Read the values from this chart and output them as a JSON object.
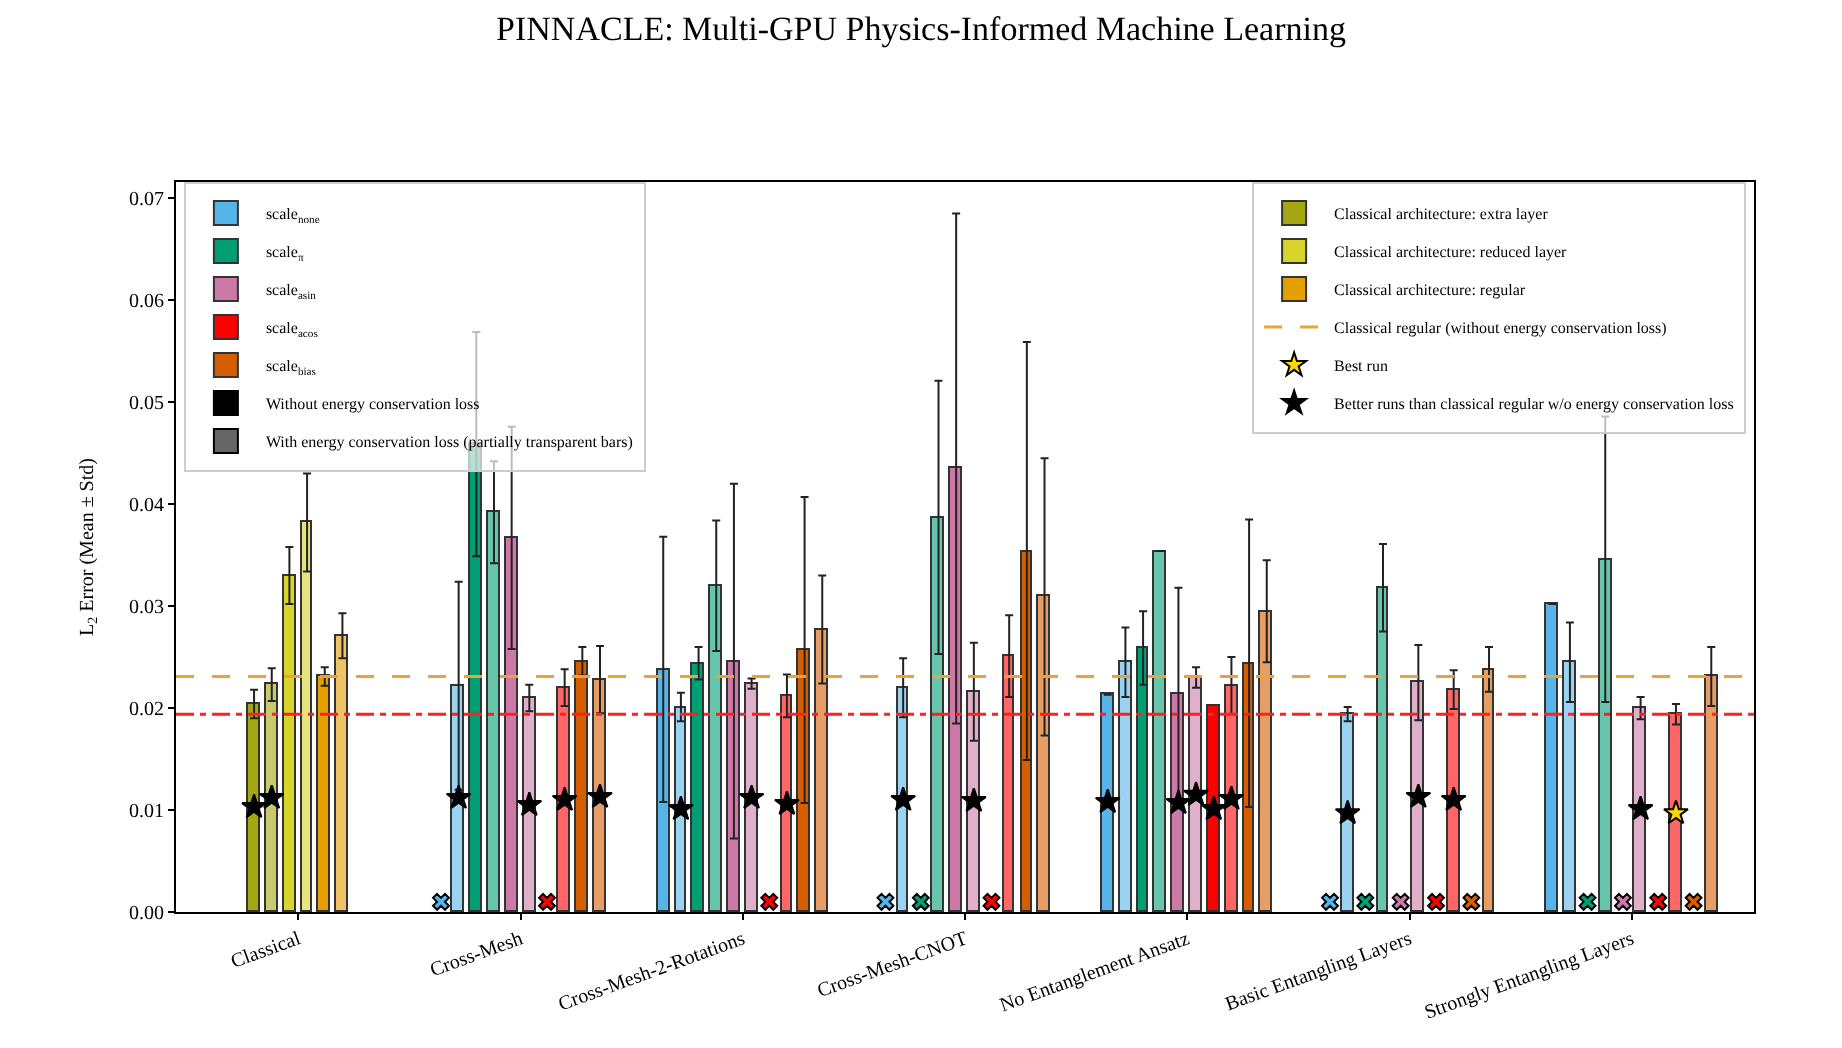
{
  "chart_data": {
    "type": "bar",
    "title": "PINNACLE: Multi-GPU Physics-Informed Machine Learning",
    "ylabel": "L$_{2}$ Error (Mean ± Std)",
    "categories": [
      "Classical",
      "Cross-Mesh",
      "Cross-Mesh-2-Rotations",
      "Cross-Mesh-CNOT",
      "No Entanglement Ansatz",
      "Basic Entangling Layers",
      "Strongly Entangling Layers"
    ],
    "ylim": [
      0,
      0.0716
    ],
    "yticks": [
      {
        "value": 0,
        "label": "0.00"
      },
      {
        "value": 0.01,
        "label": "0.01"
      },
      {
        "value": 0.02,
        "label": "0.02"
      },
      {
        "value": 0.03,
        "label": "0.03"
      },
      {
        "value": 0.04,
        "label": "0.04"
      },
      {
        "value": 0.05,
        "label": "0.05"
      },
      {
        "value": 0.06,
        "label": "0.06"
      },
      {
        "value": 0.07,
        "label": "0.07"
      }
    ],
    "legend": "top left",
    "series": [
      {
        "name": "Classical architecture: extra layer",
        "color": "#a3a812",
        "values": [
          0.0204,
          null,
          null,
          null,
          null,
          null,
          null
        ],
        "errors": [
          0.0014,
          null,
          null,
          null,
          null,
          null,
          null
        ]
      },
      {
        "type": "scatter",
        "marker": "star",
        "name": "Better runs than classical regular w/o energy conservation loss",
        "color": "#000000",
        "values": [
          0.0103,
          null,
          null,
          null,
          null,
          null,
          null
        ]
      },
      {
        "color": "#c8ca6e",
        "values": [
          0.0223,
          null,
          null,
          null,
          null,
          null,
          null
        ],
        "errors": [
          0.0016,
          null,
          null,
          null,
          null,
          null,
          null
        ]
      },
      {
        "type": "scatter",
        "marker": "star",
        "color": "#000000",
        "values": [
          0.0112,
          null,
          null,
          null,
          null,
          null,
          null
        ]
      },
      {
        "name": "Classical architecture: reduced layer",
        "color": "#d8d42c",
        "values": [
          0.033,
          null,
          null,
          null,
          null,
          null,
          null
        ],
        "errors": [
          0.0028,
          null,
          null,
          null,
          null,
          null,
          null
        ]
      },
      {
        "color": "#e6e27f",
        "values": [
          0.0382,
          null,
          null,
          null,
          null,
          null,
          null
        ],
        "errors": [
          0.0048,
          null,
          null,
          null,
          null,
          null,
          null
        ]
      },
      {
        "name": "Classical architecture: regular",
        "color": "#e69f00",
        "values": [
          0.0231,
          null,
          null,
          null,
          null,
          null,
          null
        ],
        "errors": [
          0.0009,
          null,
          null,
          null,
          null,
          null,
          null
        ]
      },
      {
        "color": "#f0c466",
        "values": [
          0.0271,
          null,
          null,
          null,
          null,
          null,
          null
        ],
        "errors": [
          0.0022,
          null,
          null,
          null,
          null,
          null,
          null
        ]
      },
      {
        "name": "scale$_{none}$",
        "color": "#56b4e9",
        "values": [
          null,
          null,
          0.0238,
          null,
          0.0213,
          null,
          0.0302
        ],
        "errors": [
          null,
          null,
          0.013,
          null,
          null,
          null,
          null
        ]
      },
      {
        "type": "scatter",
        "marker": "cross",
        "color": "#56b4e9",
        "values": [
          null,
          0.001,
          null,
          0.001,
          null,
          0.001,
          null
        ]
      },
      {
        "type": "scatter",
        "marker": "star",
        "color": "#000000",
        "values": [
          null,
          null,
          null,
          null,
          0.0108,
          null,
          null
        ]
      },
      {
        "color": "#9ad2f2",
        "values": [
          null,
          0.0222,
          0.0201,
          0.022,
          0.0245,
          0.0194,
          0.0245
        ],
        "errors": [
          null,
          0.0102,
          0.0014,
          0.0029,
          0.0034,
          0.0007,
          0.0039
        ]
      },
      {
        "type": "scatter",
        "marker": "star",
        "color": "#000000",
        "values": [
          null,
          0.0112,
          0.0101,
          0.011,
          null,
          0.0097,
          null
        ]
      },
      {
        "name": "scale$_{π}$",
        "color": "#009e73",
        "values": [
          null,
          0.0459,
          0.0244,
          null,
          0.0259,
          null,
          null
        ],
        "errors": [
          null,
          0.011,
          0.0016,
          null,
          0.0036,
          null,
          null
        ]
      },
      {
        "type": "scatter",
        "marker": "cross",
        "color": "#009e73",
        "values": [
          null,
          null,
          null,
          0.001,
          null,
          0.001,
          0.001
        ]
      },
      {
        "color": "#66c5ab",
        "values": [
          null,
          0.0392,
          0.032,
          0.0387,
          0.0354,
          0.0318,
          0.0346
        ],
        "errors": [
          null,
          0.005,
          0.0064,
          0.0134,
          null,
          0.0043,
          0.014
        ]
      },
      {
        "name": "scale$_{asin}$",
        "color": "#cc79a7",
        "values": [
          null,
          0.0367,
          0.0246,
          0.0435,
          0.0213,
          null,
          null
        ],
        "errors": [
          null,
          0.0109,
          0.0174,
          0.025,
          0.0105,
          null,
          null
        ]
      },
      {
        "type": "scatter",
        "marker": "cross",
        "color": "#cc79a7",
        "values": [
          null,
          null,
          null,
          null,
          null,
          0.001,
          0.001
        ]
      },
      {
        "type": "scatter",
        "marker": "star",
        "color": "#000000",
        "values": [
          null,
          null,
          null,
          null,
          0.0107,
          null,
          null
        ]
      },
      {
        "color": "#e0afca",
        "values": [
          null,
          0.021,
          0.0224,
          0.0216,
          0.023,
          0.0225,
          0.02
        ],
        "errors": [
          null,
          0.0013,
          0.0005,
          0.0048,
          0.001,
          0.0037,
          0.0011
        ]
      },
      {
        "type": "scatter",
        "marker": "star",
        "color": "#000000",
        "values": [
          null,
          0.0105,
          0.0112,
          0.0109,
          0.0115,
          0.0113,
          0.0101
        ]
      },
      {
        "name": "scale$_{acos}$",
        "color": "#ff0000",
        "values": [
          null,
          null,
          null,
          null,
          0.0202,
          null,
          null
        ]
      },
      {
        "type": "scatter",
        "marker": "cross",
        "color": "#ff0000",
        "values": [
          null,
          0.001,
          0.001,
          0.001,
          null,
          0.001,
          0.001
        ]
      },
      {
        "type": "scatter",
        "marker": "star",
        "color": "#000000",
        "values": [
          null,
          null,
          null,
          null,
          0.0101,
          null,
          null
        ]
      },
      {
        "color": "#ff6666",
        "values": [
          null,
          0.022,
          0.0212,
          0.0251,
          0.0222,
          0.0218,
          0.0194
        ],
        "errors": [
          null,
          0.0018,
          0.0021,
          0.004,
          0.0028,
          0.0019,
          0.001
        ]
      },
      {
        "type": "scatter",
        "marker": "star",
        "color": "#000000",
        "values": [
          null,
          0.011,
          0.0106,
          null,
          0.0111,
          0.011,
          null
        ]
      },
      {
        "type": "scatter",
        "marker": "star",
        "name": "Best run",
        "color": "#ffd700",
        "values": [
          null,
          null,
          null,
          null,
          null,
          null,
          0.0097
        ]
      },
      {
        "name": "scale$_{bias}$",
        "color": "#d55e00",
        "values": [
          null,
          0.0246,
          0.0257,
          0.0354,
          0.0244,
          null,
          null
        ],
        "errors": [
          null,
          0.0014,
          0.015,
          0.0205,
          0.0141,
          null,
          null
        ]
      },
      {
        "type": "scatter",
        "marker": "cross",
        "color": "#d55e00",
        "values": [
          null,
          null,
          null,
          null,
          null,
          0.001,
          0.001
        ]
      },
      {
        "color": "#e69e66",
        "values": [
          null,
          0.0228,
          0.0277,
          0.0309,
          0.0295,
          0.0238,
          0.0231
        ],
        "errors": [
          null,
          0.0033,
          0.0053,
          0.0136,
          0.005,
          0.0022,
          0.0029
        ]
      },
      {
        "type": "scatter",
        "marker": "star",
        "color": "#000000",
        "values": [
          null,
          0.0113,
          null,
          null,
          null,
          null,
          null
        ]
      },
      {
        "name": "Without energy conservation loss",
        "color": "#000000",
        "values": [
          null,
          null,
          null,
          null,
          null,
          null,
          null
        ]
      },
      {
        "name": "With energy conservation loss (partially transparent bars)",
        "color": "#666666",
        "values": [
          null,
          null,
          null,
          null,
          null,
          null,
          null
        ]
      }
    ],
    "ref_lines": [
      {
        "axis": "y",
        "value": 0.0231,
        "label": "Classical regular (without energy conservation loss)",
        "color": "#e8a33a",
        "line_style": "dashed"
      },
      {
        "axis": "y",
        "value": 0.0194,
        "color": "#ff2020",
        "line_style": "dashdot"
      }
    ]
  }
}
